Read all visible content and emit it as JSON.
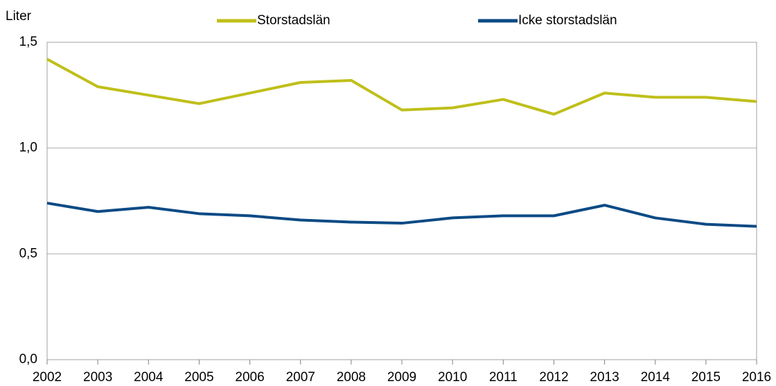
{
  "chart_data": {
    "type": "line",
    "y_label": "Liter",
    "categories": [
      "2002",
      "2003",
      "2004",
      "2005",
      "2006",
      "2007",
      "2008",
      "2009",
      "2010",
      "2011",
      "2012",
      "2013",
      "2014",
      "2015",
      "2016"
    ],
    "series": [
      {
        "name": "Storstadslän",
        "color": "#bfbf1a",
        "values": [
          1.42,
          1.29,
          1.25,
          1.21,
          1.26,
          1.31,
          1.32,
          1.18,
          1.19,
          1.23,
          1.16,
          1.26,
          1.24,
          1.24,
          1.22
        ]
      },
      {
        "name": "Icke storstadslän",
        "color": "#0b4a85",
        "values": [
          0.74,
          0.7,
          0.72,
          0.69,
          0.68,
          0.66,
          0.65,
          0.645,
          0.67,
          0.68,
          0.68,
          0.73,
          0.67,
          0.64,
          0.63
        ]
      }
    ],
    "ylim": [
      0,
      1.5
    ],
    "yticks": [
      {
        "value": 0,
        "label": "0,0"
      },
      {
        "value": 0.5,
        "label": "0,5"
      },
      {
        "value": 1,
        "label": "1,0"
      },
      {
        "value": 1.5,
        "label": "1,5"
      }
    ],
    "grid": true,
    "legend": "top"
  }
}
